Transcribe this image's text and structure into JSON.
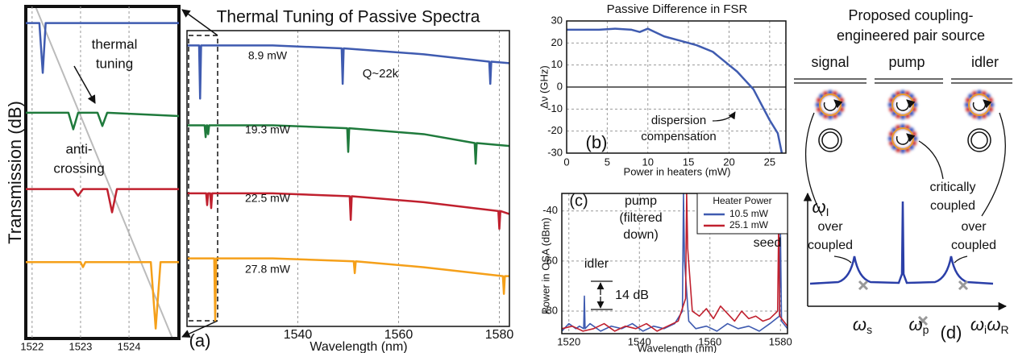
{
  "chart_data": [
    {
      "type": "line",
      "ylabel": "Transmission (dB)",
      "xlim": [
        1521.87,
        1525.03
      ],
      "ylim": [
        0,
        100
      ],
      "xticks": [
        1522,
        1523,
        1524
      ],
      "grid": true,
      "annotations": [
        [
          "thermal",
          "tuning"
        ],
        [
          "anti-",
          "crossing"
        ]
      ],
      "series": [
        {
          "color": "#3f5bb0",
          "x": [
            1521.87,
            1522.15,
            1522.22,
            1522.28,
            1522.32,
            1525.03
          ],
          "values": [
            95,
            95,
            80,
            95,
            95,
            95
          ]
        },
        {
          "color": "#1f7a3c",
          "x": [
            1521.87,
            1522.75,
            1522.85,
            1522.95,
            1523.35,
            1523.45,
            1523.55,
            1525.03
          ],
          "values": [
            68,
            68,
            63,
            68,
            68,
            64,
            68,
            67
          ]
        },
        {
          "color": "#c0202e",
          "x": [
            1521.87,
            1522.85,
            1522.95,
            1523.05,
            1523.55,
            1523.65,
            1523.75,
            1525.03
          ],
          "values": [
            45,
            45,
            43,
            45,
            45,
            38,
            45,
            45
          ]
        },
        {
          "color": "#f5a01a",
          "x": [
            1521.87,
            1523.0,
            1523.05,
            1523.1,
            1524.45,
            1524.55,
            1524.65,
            1525.03
          ],
          "values": [
            23,
            23,
            21.5,
            23,
            23,
            3,
            23,
            23
          ]
        }
      ]
    },
    {
      "type": "line",
      "title": "Thermal Tuning of Passive Spectra",
      "xlabel": "Wavelength (nm)",
      "panel_label": "(a)",
      "xlim": [
        1518,
        1582
      ],
      "ylim": [
        0,
        100
      ],
      "xticks": [
        1540,
        1560,
        1580
      ],
      "grid": true,
      "annotations": [
        "Q~22k"
      ],
      "series": [
        {
          "name": "8.9 mW",
          "color": "#3f5bb0",
          "x": [
            1518,
            1520.4,
            1520.6,
            1520.8,
            1535,
            1548.7,
            1548.9,
            1549.1,
            1565,
            1578,
            1578.2,
            1578.4,
            1582
          ],
          "values": [
            95,
            95,
            77,
            95,
            95,
            94,
            82,
            94,
            92,
            89.5,
            82,
            89.5,
            89
          ]
        },
        {
          "name": "19.3 mW",
          "color": "#1f7a3c",
          "x": [
            1518,
            1521.5,
            1521.7,
            1521.9,
            1522.0,
            1522.2,
            1522.4,
            1535,
            1549.8,
            1550,
            1550.2,
            1565,
            1575.1,
            1575.3,
            1575.5,
            1582
          ],
          "values": [
            68,
            68,
            64,
            68,
            68,
            65,
            68,
            68,
            67,
            59,
            67,
            65,
            62,
            55,
            62,
            61
          ]
        },
        {
          "name": "22.5 mW",
          "color": "#c0202e",
          "x": [
            1518,
            1521.8,
            1522,
            1522.2,
            1522.6,
            1522.8,
            1523,
            1535,
            1550.3,
            1550.5,
            1550.7,
            1565,
            1579.8,
            1580,
            1580.2,
            1582
          ],
          "values": [
            45,
            45,
            41,
            45,
            45,
            40,
            45,
            45,
            44,
            36,
            44,
            42,
            39,
            33,
            39,
            38
          ]
        },
        {
          "name": "27.8 mW",
          "color": "#f5a01a",
          "x": [
            1518,
            1523.4,
            1523.6,
            1523.8,
            1535,
            1551.1,
            1551.3,
            1551.5,
            1565,
            1580.7,
            1580.9,
            1581.1,
            1582
          ],
          "values": [
            23,
            23,
            2,
            23,
            23,
            22,
            18,
            22,
            20,
            17,
            11,
            17,
            17
          ]
        }
      ]
    },
    {
      "type": "line",
      "title": "Passive Difference in FSR",
      "xlabel": "Power in heaters (mW)",
      "ylabel": "Δν (GHz)",
      "panel_label": "(b)",
      "xlim": [
        0,
        27
      ],
      "ylim": [
        -30,
        30
      ],
      "xticks": [
        0,
        5,
        10,
        15,
        20,
        25
      ],
      "yticks": [
        -30,
        -20,
        -10,
        0,
        10,
        20,
        30
      ],
      "grid": true,
      "annotations": [
        [
          "dispersion",
          "compensation"
        ]
      ],
      "series": [
        {
          "color": "#3f5bb0",
          "x": [
            0,
            2,
            4,
            6,
            8,
            9,
            10,
            12,
            14,
            16,
            18,
            20,
            21,
            22,
            23,
            24,
            25,
            26,
            26.5
          ],
          "values": [
            26,
            26,
            26,
            26.5,
            26,
            25,
            26.5,
            23,
            21,
            19,
            16,
            10,
            7,
            3,
            -1,
            -8,
            -15,
            -21,
            -30
          ]
        }
      ]
    },
    {
      "type": "line",
      "xlabel": "Wavelength (nm)",
      "ylabel": "Power in OSA (dBm)",
      "panel_label": "(c)",
      "xlim": [
        1518,
        1582
      ],
      "ylim": [
        -89,
        -33
      ],
      "xticks": [
        1520,
        1540,
        1560,
        1580
      ],
      "yticks": [
        -40,
        -60,
        -80
      ],
      "grid": true,
      "legend": {
        "title": "Heater Power",
        "position": "upper right"
      },
      "annotations": [
        [
          "pump",
          "(filtered",
          "down)"
        ],
        [
          "seed"
        ],
        [
          "idler"
        ],
        [
          "14 dB"
        ]
      ],
      "series": [
        {
          "name": "10.5 mW",
          "color": "#3f5bb0",
          "x": [
            1518,
            1520,
            1522,
            1523,
            1524.2,
            1524.4,
            1524.6,
            1526,
            1529,
            1532,
            1535,
            1538,
            1541,
            1544,
            1547,
            1550,
            1552.2,
            1552.5,
            1552.8,
            1554,
            1556,
            1559,
            1562,
            1565,
            1568,
            1571,
            1574,
            1577,
            1579.7,
            1580,
            1580.3,
            1582
          ],
          "values": [
            -88,
            -85,
            -87,
            -86,
            -87,
            -74,
            -87,
            -85,
            -88,
            -86,
            -87,
            -85,
            -88,
            -86,
            -87,
            -85,
            -80,
            -33,
            -60,
            -84,
            -87,
            -86,
            -88,
            -85,
            -87,
            -86,
            -88,
            -85,
            -82,
            -48,
            -84,
            -87
          ]
        },
        {
          "name": "25.1 mW",
          "color": "#c0202e",
          "x": [
            1518,
            1521,
            1524,
            1527,
            1530,
            1533,
            1536,
            1539,
            1542,
            1545,
            1548,
            1551,
            1553.1,
            1553.4,
            1553.7,
            1555,
            1557,
            1559,
            1561,
            1563,
            1565,
            1567,
            1569,
            1571,
            1573,
            1575,
            1577,
            1579.2,
            1579.5,
            1579.8,
            1582
          ],
          "values": [
            -87,
            -86,
            -88,
            -87,
            -85,
            -88,
            -86,
            -87,
            -85,
            -88,
            -86,
            -84,
            -75,
            -33,
            -55,
            -80,
            -82,
            -79,
            -83,
            -78,
            -81,
            -84,
            -80,
            -83,
            -82,
            -84,
            -83,
            -80,
            -44,
            -82,
            -86
          ]
        }
      ]
    }
  ],
  "panel_d": {
    "title": [
      "Proposed coupling-",
      "engineered pair source"
    ],
    "rings": [
      "signal",
      "pump",
      "idler"
    ],
    "coupling": [
      [
        "over",
        "coupled"
      ],
      [
        "critically",
        "coupled"
      ],
      [
        "over",
        "coupled"
      ]
    ],
    "axes": {
      "y": {
        "symbol": "ω",
        "sub": "I"
      },
      "x": {
        "symbol": "ω",
        "sub": "R"
      }
    },
    "resonances": [
      {
        "symbol": "ω",
        "sub": "s"
      },
      {
        "symbol": "ω",
        "sub": "p"
      },
      {
        "symbol": "ω",
        "sub": "i"
      }
    ],
    "panel_label": "(d)"
  }
}
